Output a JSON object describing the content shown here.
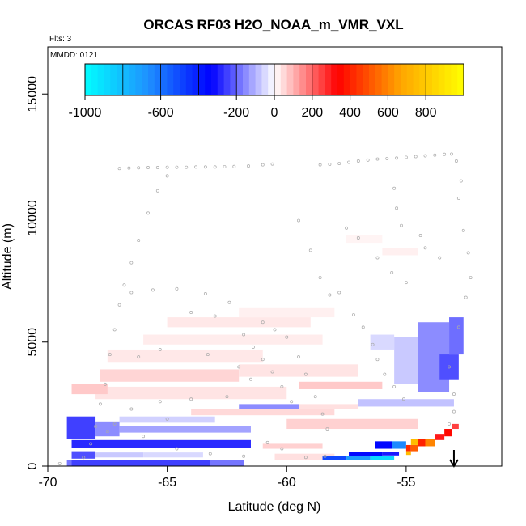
{
  "chart_data": {
    "type": "heatmap",
    "title": "ORCAS RF03 H2O_NOAA_m_VMR_VXL",
    "flts_label": "Flts: 3",
    "mmdd_label": "MMDD: 0121",
    "xlabel": "Latitude (deg N)",
    "ylabel": "Altitude (m)",
    "xlim": [
      -70,
      -51
    ],
    "ylim": [
      0,
      16900
    ],
    "x_ticks": [
      -70,
      -65,
      -60,
      -55
    ],
    "x_tick_labels": [
      "-70",
      "-65",
      "-60",
      "-55"
    ],
    "y_ticks": [
      0,
      5000,
      10000,
      15000
    ],
    "y_tick_labels": [
      "0",
      "5000",
      "10000",
      "15000"
    ],
    "colorbar": {
      "min": -1000,
      "max": 1000,
      "ticks": [
        -1000,
        -600,
        -200,
        0,
        200,
        400,
        600,
        800
      ],
      "tick_labels": [
        "-1000",
        "-600",
        "-200",
        "0",
        "200",
        "400",
        "600",
        "800"
      ],
      "colors": [
        "#00ffff",
        "#1e90ff",
        "#0000ff",
        "#ffffff",
        "#ff0000",
        "#ffa500",
        "#ffff00"
      ]
    },
    "marker": {
      "type": "down-arrow",
      "x": -53.0
    },
    "cells": [
      {
        "x0": -69.2,
        "x1": -68.9,
        "y0": 0,
        "y1": 250,
        "v": -180
      },
      {
        "x0": -69.0,
        "x1": -63.2,
        "y0": 0,
        "y1": 250,
        "v": -250
      },
      {
        "x0": -63.2,
        "x1": -61.8,
        "y0": 0,
        "y1": 250,
        "v": -180
      },
      {
        "x0": -69.0,
        "x1": -68.0,
        "y0": 300,
        "y1": 600,
        "v": -230
      },
      {
        "x0": -68.0,
        "x1": -66.0,
        "y0": 350,
        "y1": 550,
        "v": -70
      },
      {
        "x0": -66.0,
        "x1": -63.5,
        "y0": 350,
        "y1": 550,
        "v": -50
      },
      {
        "x0": -60.5,
        "x1": -58.0,
        "y0": 250,
        "y1": 500,
        "v": 40
      },
      {
        "x0": -58.5,
        "x1": -57.5,
        "y0": 250,
        "y1": 420,
        "v": -500
      },
      {
        "x0": -57.5,
        "x1": -56.5,
        "y0": 250,
        "y1": 420,
        "v": -700
      },
      {
        "x0": -56.5,
        "x1": -55.5,
        "y0": 250,
        "y1": 420,
        "v": -880
      },
      {
        "x0": -57.4,
        "x1": -56.0,
        "y0": 420,
        "y1": 560,
        "v": -350
      },
      {
        "x0": -56.0,
        "x1": -55.3,
        "y0": 430,
        "y1": 560,
        "v": -300
      },
      {
        "x0": -69.0,
        "x1": -61.5,
        "y0": 750,
        "y1": 1050,
        "v": -280
      },
      {
        "x0": -61.0,
        "x1": -58.5,
        "y0": 700,
        "y1": 900,
        "v": 60
      },
      {
        "x0": -56.3,
        "x1": -55.6,
        "y0": 700,
        "y1": 1000,
        "v": -350
      },
      {
        "x0": -55.6,
        "x1": -55.0,
        "y0": 700,
        "y1": 1000,
        "v": -650
      },
      {
        "x0": -55.0,
        "x1": -54.8,
        "y0": 600,
        "y1": 850,
        "v": 420
      },
      {
        "x0": -55.0,
        "x1": -54.8,
        "y0": 450,
        "y1": 600,
        "v": 750
      },
      {
        "x0": -54.8,
        "x1": -54.5,
        "y0": 600,
        "y1": 850,
        "v": 520
      },
      {
        "x0": -54.5,
        "x1": -54.2,
        "y0": 800,
        "y1": 1100,
        "v": 400
      },
      {
        "x0": -54.2,
        "x1": -53.8,
        "y0": 800,
        "y1": 1100,
        "v": 600
      },
      {
        "x0": -54.8,
        "x1": -54.5,
        "y0": 850,
        "y1": 1100,
        "v": 750
      },
      {
        "x0": -53.8,
        "x1": -53.4,
        "y0": 1050,
        "y1": 1300,
        "v": 300
      },
      {
        "x0": -53.4,
        "x1": -53.1,
        "y0": 1200,
        "y1": 1500,
        "v": 350
      },
      {
        "x0": -53.1,
        "x1": -52.8,
        "y0": 1500,
        "y1": 1700,
        "v": 250
      },
      {
        "x0": -69.2,
        "x1": -68.0,
        "y0": 1100,
        "y1": 2000,
        "v": -250
      },
      {
        "x0": -68.0,
        "x1": -67.0,
        "y0": 1200,
        "y1": 1800,
        "v": -150
      },
      {
        "x0": -67.0,
        "x1": -61.5,
        "y0": 1350,
        "y1": 1600,
        "v": -120
      },
      {
        "x0": -67.0,
        "x1": -63.0,
        "y0": 1750,
        "y1": 2000,
        "v": -60
      },
      {
        "x0": -60.0,
        "x1": -54.5,
        "y0": 1500,
        "y1": 1900,
        "v": 60
      },
      {
        "x0": -64.0,
        "x1": -58.0,
        "y0": 2050,
        "y1": 2300,
        "v": 50
      },
      {
        "x0": -62.0,
        "x1": -59.5,
        "y0": 2300,
        "y1": 2500,
        "v": -150
      },
      {
        "x0": -59.5,
        "x1": -57.0,
        "y0": 2300,
        "y1": 2500,
        "v": 40
      },
      {
        "x0": -57.0,
        "x1": -53.0,
        "y0": 2400,
        "y1": 2700,
        "v": -80
      },
      {
        "x0": -68.0,
        "x1": -60.0,
        "y0": 2700,
        "y1": 3200,
        "v": 35
      },
      {
        "x0": -69.0,
        "x1": -67.5,
        "y0": 2900,
        "y1": 3300,
        "v": 70
      },
      {
        "x0": -59.5,
        "x1": -56.0,
        "y0": 3100,
        "y1": 3400,
        "v": 70
      },
      {
        "x0": -67.8,
        "x1": -62.0,
        "y0": 3400,
        "y1": 3900,
        "v": 55
      },
      {
        "x0": -62.0,
        "x1": -57.0,
        "y0": 3600,
        "y1": 4100,
        "v": 35
      },
      {
        "x0": -67.5,
        "x1": -61.0,
        "y0": 4200,
        "y1": 4700,
        "v": 30
      },
      {
        "x0": -66.0,
        "x1": -58.5,
        "y0": 4900,
        "y1": 5300,
        "v": 25
      },
      {
        "x0": -65.0,
        "x1": -59.0,
        "y0": 5600,
        "y1": 6000,
        "v": 30
      },
      {
        "x0": -62.0,
        "x1": -58.0,
        "y0": 6000,
        "y1": 6400,
        "v": 20
      },
      {
        "x0": -56.5,
        "x1": -55.5,
        "y0": 4700,
        "y1": 5300,
        "v": -50
      },
      {
        "x0": -55.5,
        "x1": -54.5,
        "y0": 3300,
        "y1": 5200,
        "v": -70
      },
      {
        "x0": -54.5,
        "x1": -53.2,
        "y0": 3000,
        "y1": 5800,
        "v": -150
      },
      {
        "x0": -53.6,
        "x1": -52.8,
        "y0": 3500,
        "y1": 4500,
        "v": -230
      },
      {
        "x0": -53.2,
        "x1": -52.6,
        "y0": 4500,
        "y1": 6000,
        "v": -190
      },
      {
        "x0": -56.0,
        "x1": -54.5,
        "y0": 8500,
        "y1": 8800,
        "v": 20
      },
      {
        "x0": -57.5,
        "x1": -56.0,
        "y0": 9000,
        "y1": 9300,
        "v": 15
      }
    ],
    "flight_track": [
      [
        -69.5,
        100
      ],
      [
        -68.5,
        350
      ],
      [
        -68.2,
        900
      ],
      [
        -68.0,
        1600
      ],
      [
        -67.8,
        2500
      ],
      [
        -67.6,
        3300
      ],
      [
        -67.4,
        4500
      ],
      [
        -67.2,
        5500
      ],
      [
        -67.0,
        6500
      ],
      [
        -66.8,
        7300
      ],
      [
        -66.5,
        8200
      ],
      [
        -66.2,
        9100
      ],
      [
        -65.8,
        10200
      ],
      [
        -65.4,
        11100
      ],
      [
        -65.0,
        11700
      ],
      [
        -67.0,
        12000
      ],
      [
        -66.6,
        12020
      ],
      [
        -66.2,
        12030
      ],
      [
        -65.8,
        12040
      ],
      [
        -65.4,
        12040
      ],
      [
        -65.0,
        12050
      ],
      [
        -64.6,
        12050
      ],
      [
        -64.2,
        12050
      ],
      [
        -63.8,
        12060
      ],
      [
        -63.4,
        12060
      ],
      [
        -63.0,
        12060
      ],
      [
        -62.6,
        12070
      ],
      [
        -62.2,
        12080
      ],
      [
        -61.6,
        12100
      ],
      [
        -61.0,
        12150
      ],
      [
        -60.6,
        12180
      ],
      [
        -58.6,
        12150
      ],
      [
        -58.2,
        12170
      ],
      [
        -57.8,
        12200
      ],
      [
        -57.4,
        12250
      ],
      [
        -57.0,
        12300
      ],
      [
        -56.6,
        12340
      ],
      [
        -56.2,
        12380
      ],
      [
        -55.8,
        12400
      ],
      [
        -55.4,
        12420
      ],
      [
        -55.0,
        12450
      ],
      [
        -54.6,
        12480
      ],
      [
        -54.2,
        12510
      ],
      [
        -53.8,
        12540
      ],
      [
        -53.4,
        12570
      ],
      [
        -53.1,
        12580
      ],
      [
        -52.9,
        12300
      ],
      [
        -52.7,
        11500
      ],
      [
        -52.8,
        10800
      ],
      [
        -52.6,
        9500
      ],
      [
        -52.4,
        8600
      ],
      [
        -52.3,
        7600
      ],
      [
        -52.5,
        6800
      ],
      [
        -52.8,
        5600
      ],
      [
        -53.2,
        4000
      ],
      [
        -53.0,
        2900
      ],
      [
        -53.0,
        2200
      ],
      [
        -53.2,
        1700
      ],
      [
        -64.0,
        6200
      ],
      [
        -63.0,
        6050
      ],
      [
        -61.0,
        5800
      ],
      [
        -60.5,
        5500
      ],
      [
        -60.0,
        5200
      ],
      [
        -59.5,
        4400
      ],
      [
        -59.2,
        3700
      ],
      [
        -58.8,
        2800
      ],
      [
        -58.5,
        2100
      ],
      [
        -58.3,
        1500
      ],
      [
        -66.5,
        7000
      ],
      [
        -65.6,
        7100
      ],
      [
        -64.6,
        7150
      ],
      [
        -63.4,
        6950
      ],
      [
        -62.4,
        6600
      ],
      [
        -61.8,
        5300
      ],
      [
        -61.4,
        4800
      ],
      [
        -61.0,
        4300
      ],
      [
        -60.6,
        3800
      ],
      [
        -60.2,
        3200
      ],
      [
        -59.8,
        2600
      ],
      [
        -59.5,
        9900
      ],
      [
        -59.0,
        8700
      ],
      [
        -58.6,
        7600
      ],
      [
        -58.2,
        6900
      ],
      [
        -57.8,
        7000
      ],
      [
        -57.2,
        6100
      ],
      [
        -56.8,
        5600
      ],
      [
        -56.4,
        4900
      ],
      [
        -56.2,
        4300
      ],
      [
        -55.9,
        3700
      ],
      [
        -55.5,
        3200
      ],
      [
        -55.1,
        2700
      ],
      [
        -57.5,
        9600
      ],
      [
        -57.0,
        9200
      ],
      [
        -56.2,
        8400
      ],
      [
        -55.6,
        7800
      ],
      [
        -55.0,
        7400
      ],
      [
        -54.4,
        9300
      ],
      [
        -54.2,
        8800
      ],
      [
        -53.6,
        8400
      ],
      [
        -55.5,
        11200
      ],
      [
        -55.4,
        10400
      ],
      [
        -55.2,
        9700
      ],
      [
        -66.2,
        4400
      ],
      [
        -65.3,
        4700
      ],
      [
        -63.3,
        4500
      ],
      [
        -62.0,
        4000
      ],
      [
        -61.5,
        3500
      ],
      [
        -62.5,
        2800
      ],
      [
        -64.0,
        2700
      ],
      [
        -65.3,
        2600
      ],
      [
        -66.5,
        2300
      ],
      [
        -67.2,
        1700
      ],
      [
        -67.5,
        1400
      ],
      [
        -66.0,
        1200
      ],
      [
        -65.0,
        1900
      ],
      [
        -64.6,
        700
      ],
      [
        -63.2,
        500
      ],
      [
        -61.8,
        400
      ],
      [
        -60.8,
        950
      ],
      [
        -60.2,
        700
      ],
      [
        -59.2,
        350
      ],
      [
        -58.4,
        400
      ]
    ]
  }
}
